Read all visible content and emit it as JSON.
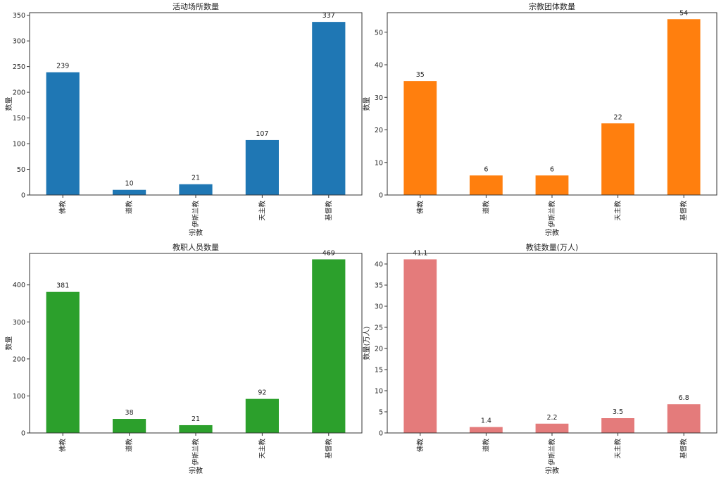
{
  "chart_data": [
    {
      "type": "bar",
      "title": "活动场所数量",
      "xlabel": "宗教",
      "ylabel": "数量",
      "categories": [
        "佛教",
        "道教",
        "伊斯兰教",
        "天主教",
        "基督教"
      ],
      "values": [
        239,
        10,
        21,
        107,
        337
      ],
      "data_labels": [
        "239",
        "10",
        "21",
        "107",
        "337"
      ],
      "ylim": [
        0,
        355
      ],
      "yticks": [
        0,
        50,
        100,
        150,
        200,
        250,
        300,
        350
      ],
      "color": "#1f77b4",
      "grid": false
    },
    {
      "type": "bar",
      "title": "宗教团体数量",
      "xlabel": "宗教",
      "ylabel": "数量",
      "categories": [
        "佛教",
        "道教",
        "伊斯兰教",
        "天主教",
        "基督教"
      ],
      "values": [
        35,
        6,
        6,
        22,
        54
      ],
      "data_labels": [
        "35",
        "6",
        "6",
        "22",
        "54"
      ],
      "ylim": [
        0,
        56
      ],
      "yticks": [
        0,
        10,
        20,
        30,
        40,
        50
      ],
      "color": "#ff7f0e",
      "grid": false
    },
    {
      "type": "bar",
      "title": "教职人员数量",
      "xlabel": "宗教",
      "ylabel": "数量",
      "categories": [
        "佛教",
        "道教",
        "伊斯兰教",
        "天主教",
        "基督教"
      ],
      "values": [
        381,
        38,
        21,
        92,
        469
      ],
      "data_labels": [
        "381",
        "38",
        "21",
        "92",
        "469"
      ],
      "ylim": [
        0,
        485
      ],
      "yticks": [
        0,
        100,
        200,
        300,
        400
      ],
      "color": "#2ca02c",
      "grid": false
    },
    {
      "type": "bar",
      "title": "教徒数量(万人)",
      "xlabel": "宗教",
      "ylabel": "数量(万人)",
      "categories": [
        "佛教",
        "道教",
        "伊斯兰教",
        "天主教",
        "基督教"
      ],
      "values": [
        41.1,
        1.4,
        2.2,
        3.5,
        6.8
      ],
      "data_labels": [
        "41.1",
        "1.4",
        "2.2",
        "3.5",
        "6.8"
      ],
      "ylim": [
        0,
        42.5
      ],
      "yticks": [
        0,
        5,
        10,
        15,
        20,
        25,
        30,
        35,
        40
      ],
      "color": "#e47b7b",
      "grid": false
    }
  ]
}
